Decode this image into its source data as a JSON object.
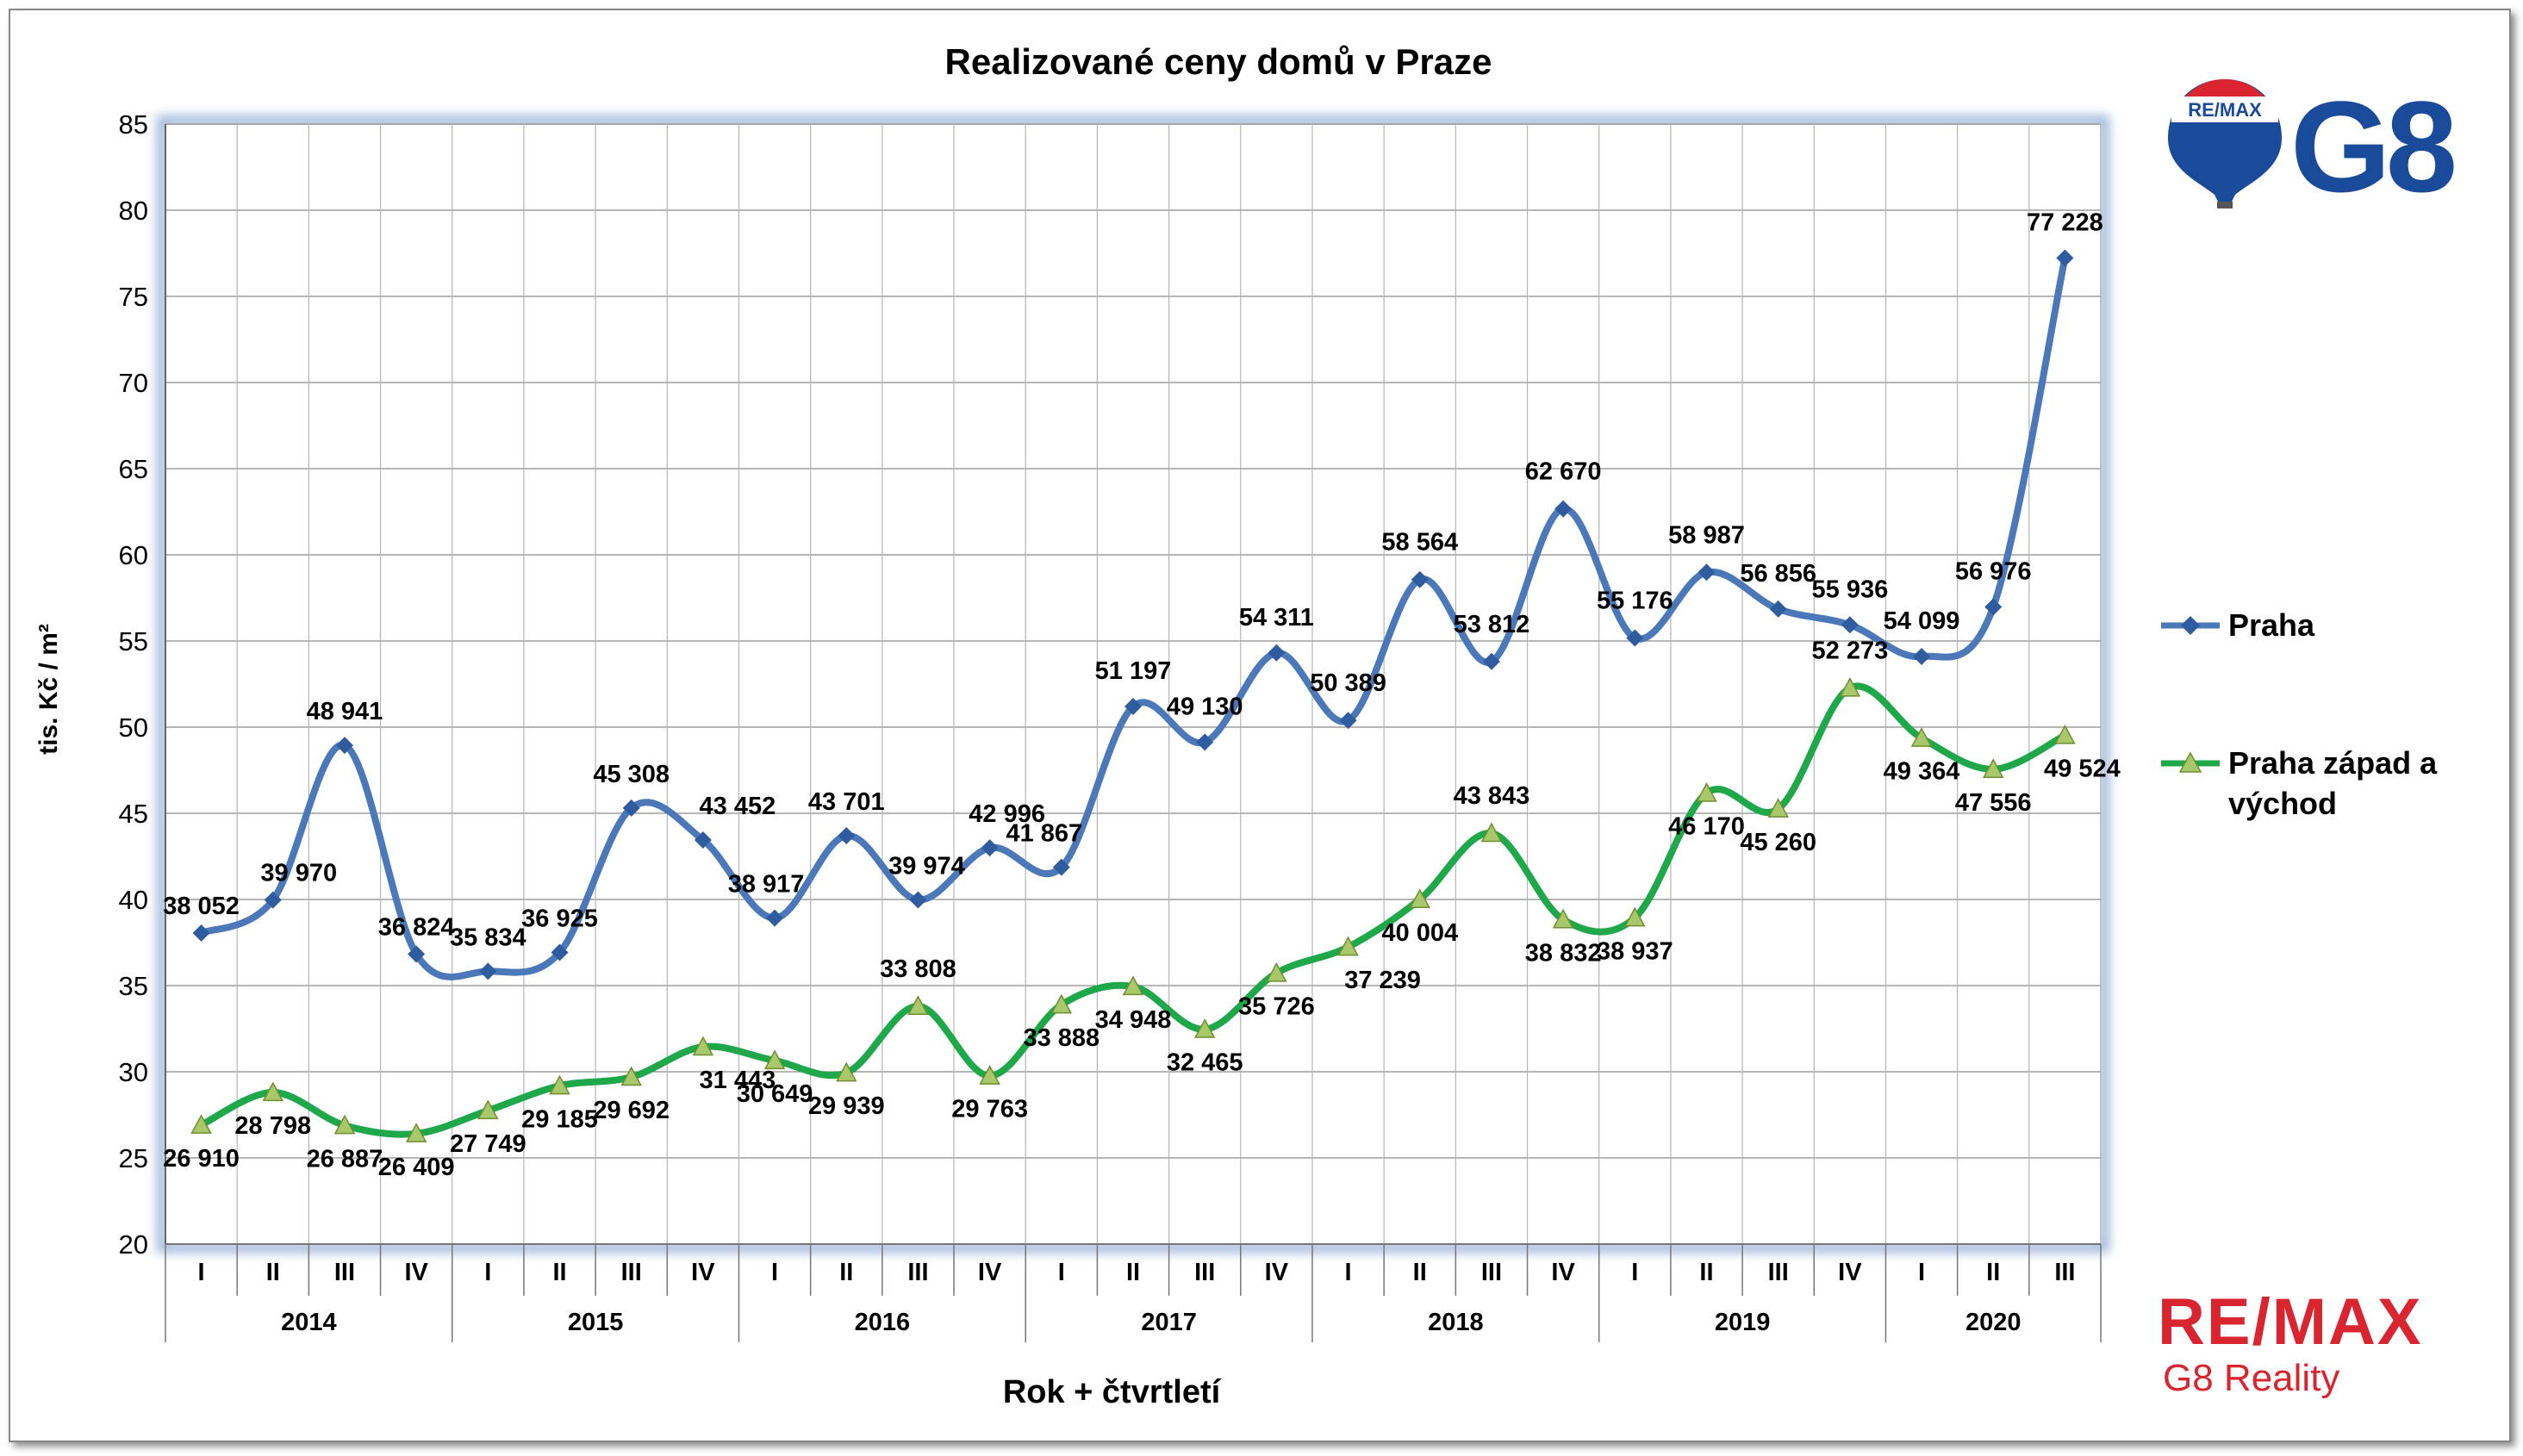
{
  "chart_data": {
    "type": "line",
    "title": "Realizované ceny domů v Praze",
    "xlabel": "Rok + čtvrtletí",
    "ylabel": "tis. Kč / m²",
    "ylim": [
      20,
      85
    ],
    "yticks": [
      "20",
      "25",
      "30",
      "35",
      "40",
      "45",
      "50",
      "55",
      "60",
      "65",
      "70",
      "75",
      "80",
      "85"
    ],
    "grid": true,
    "legend_position": "right",
    "quarters": [
      "I",
      "II",
      "III",
      "IV",
      "I",
      "II",
      "III",
      "IV",
      "I",
      "II",
      "III",
      "IV",
      "I",
      "II",
      "III",
      "IV",
      "I",
      "II",
      "III",
      "IV",
      "I",
      "II",
      "III",
      "IV",
      "I",
      "II",
      "III"
    ],
    "years": [
      {
        "label": "2014",
        "count": 4
      },
      {
        "label": "2015",
        "count": 4
      },
      {
        "label": "2016",
        "count": 4
      },
      {
        "label": "2017",
        "count": 4
      },
      {
        "label": "2018",
        "count": 4
      },
      {
        "label": "2019",
        "count": 4
      },
      {
        "label": "2020",
        "count": 3
      }
    ],
    "series": [
      {
        "name": "Praha",
        "color": "#4a78b8",
        "marker": "diamond",
        "values": [
          38.052,
          39.97,
          48.941,
          36.824,
          35.834,
          36.925,
          45.308,
          43.452,
          38.917,
          43.701,
          39.974,
          42.996,
          41.867,
          51.197,
          49.13,
          54.311,
          50.389,
          58.564,
          53.812,
          62.67,
          55.176,
          58.987,
          56.856,
          55.936,
          54.099,
          56.976,
          77.228
        ],
        "labels": [
          "38 052",
          "39 970",
          "48 941",
          "36 824",
          "35 834",
          "36 925",
          "45 308",
          "43 452",
          "38 917",
          "43 701",
          "39 974",
          "42 996",
          "41 867",
          "51 197",
          "49 130",
          "54 311",
          "50 389",
          "58 564",
          "53 812",
          "62 670",
          "55 176",
          "58 987",
          "56 856",
          "55 936",
          "54 099",
          "56 976",
          "77 228"
        ]
      },
      {
        "name": "Praha západ a východ",
        "color": "#1ea84a",
        "marker": "triangle",
        "values": [
          26.91,
          28.798,
          26.887,
          26.409,
          27.749,
          29.185,
          29.692,
          31.443,
          30.649,
          29.939,
          33.808,
          29.763,
          33.888,
          34.948,
          32.465,
          35.726,
          37.239,
          40.004,
          43.843,
          38.832,
          38.937,
          46.17,
          45.26,
          52.273,
          49.364,
          47.556,
          49.524
        ],
        "labels": [
          "26 910",
          "28 798",
          "26 887",
          "26 409",
          "27 749",
          "29 185",
          "29 692",
          "31 443",
          "30 649",
          "29 939",
          "33 808",
          "29 763",
          "33 888",
          "34 948",
          "32 465",
          "35 726",
          "37 239",
          "40 004",
          "43 843",
          "38 832",
          "38 937",
          "46 170",
          "45 260",
          "52 273",
          "49 364",
          "47 556",
          "49 524"
        ]
      }
    ]
  },
  "legend": {
    "series1": "Praha",
    "series2_line1": "Praha západ a",
    "series2_line2": "východ"
  },
  "logo": {
    "balloon_text": "RE/MAX",
    "g8_text": "G8",
    "brand_text": "RE/MAX",
    "subtitle": "G8 Reality"
  }
}
